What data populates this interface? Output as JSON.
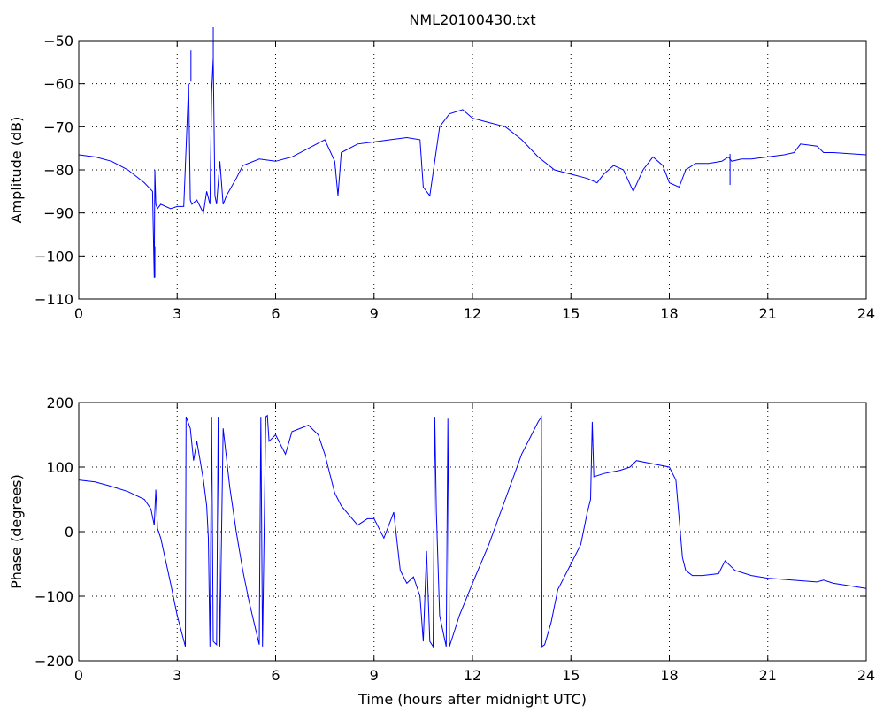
{
  "title": "NML20100430.txt",
  "chart_data": [
    {
      "type": "line",
      "name": "amplitude",
      "xlabel": "",
      "ylabel": "Amplitude (dB)",
      "xlim": [
        0,
        24
      ],
      "ylim": [
        -110,
        -50
      ],
      "xticks": [
        0,
        3,
        6,
        9,
        12,
        15,
        18,
        21,
        24
      ],
      "yticks": [
        -110,
        -100,
        -90,
        -80,
        -70,
        -60,
        -50
      ],
      "grid": true,
      "color": "#0000ff",
      "x": [
        0,
        0.5,
        1.0,
        1.5,
        2.0,
        2.25,
        2.3,
        2.32,
        2.35,
        2.4,
        2.5,
        2.8,
        3.0,
        3.2,
        3.35,
        3.4,
        3.45,
        3.6,
        3.8,
        3.9,
        4.0,
        4.05,
        4.1,
        4.15,
        4.2,
        4.3,
        4.4,
        4.5,
        4.8,
        5.0,
        5.5,
        6.0,
        6.5,
        7.0,
        7.5,
        7.8,
        7.9,
        8.0,
        8.5,
        9.0,
        9.5,
        10.0,
        10.4,
        10.5,
        10.7,
        11.0,
        11.3,
        11.7,
        12.0,
        12.5,
        13.0,
        13.5,
        14.0,
        14.5,
        15.0,
        15.5,
        15.8,
        16.0,
        16.3,
        16.6,
        16.9,
        17.2,
        17.5,
        17.8,
        18.0,
        18.3,
        18.5,
        18.8,
        19.2,
        19.6,
        19.8,
        19.9,
        20.2,
        20.5,
        21.0,
        21.5,
        21.8,
        22.0,
        22.5,
        22.7,
        23.0,
        24.0
      ],
      "y": [
        -76.5,
        -77,
        -78,
        -80,
        -83,
        -85,
        -105,
        -80,
        -88,
        -89,
        -88,
        -89,
        -88.5,
        -88.5,
        -60,
        -87,
        -88,
        -87,
        -90,
        -85,
        -88,
        -62,
        -54,
        -86,
        -88,
        -78,
        -88,
        -86,
        -82,
        -79,
        -77.5,
        -78,
        -77,
        -75,
        -73,
        -78,
        -86,
        -76,
        -74,
        -73.5,
        -73,
        -72.5,
        -73,
        -84,
        -86,
        -70,
        -67,
        -66,
        -68,
        -69,
        -70,
        -73,
        -77,
        -80,
        -81,
        -82,
        -83,
        -81,
        -79,
        -80,
        -85,
        -80,
        -77,
        -79,
        -83,
        -84,
        -80,
        -78.5,
        -78.5,
        -78,
        -77,
        -78,
        -77.5,
        -77.5,
        -77,
        -76.5,
        -76,
        -74,
        -74.5,
        -76,
        -76,
        -76.5
      ],
      "annotations": [
        {
          "x": 2.32,
          "y": -105
        },
        {
          "x": 3.42,
          "y": -59.5
        },
        {
          "x": 4.1,
          "y": -54
        },
        {
          "x": 19.85,
          "y": -83.5
        }
      ]
    },
    {
      "type": "line",
      "name": "phase",
      "xlabel": "Time (hours after midnight UTC)",
      "ylabel": "Phase (degrees)",
      "xlim": [
        0,
        24
      ],
      "ylim": [
        -200,
        200
      ],
      "xticks": [
        0,
        3,
        6,
        9,
        12,
        15,
        18,
        21,
        24
      ],
      "yticks": [
        -200,
        -100,
        0,
        100,
        200
      ],
      "grid": true,
      "color": "#0000ff",
      "x": [
        0,
        0.5,
        1.0,
        1.5,
        2.0,
        2.2,
        2.3,
        2.35,
        2.4,
        2.5,
        2.8,
        3.0,
        3.25,
        3.27,
        3.4,
        3.5,
        3.6,
        3.8,
        3.9,
        3.95,
        4.0,
        4.05,
        4.1,
        4.2,
        4.25,
        4.3,
        4.4,
        4.6,
        4.8,
        5.0,
        5.2,
        5.5,
        5.55,
        5.6,
        5.7,
        5.75,
        5.8,
        6.0,
        6.3,
        6.5,
        7.0,
        7.3,
        7.5,
        7.8,
        8.0,
        8.5,
        8.8,
        9.0,
        9.3,
        9.6,
        9.8,
        10.0,
        10.2,
        10.4,
        10.5,
        10.6,
        10.7,
        10.8,
        10.85,
        10.9,
        11.0,
        11.2,
        11.25,
        11.3,
        11.6,
        12.0,
        12.5,
        13.0,
        13.5,
        14.0,
        14.1,
        14.12,
        14.2,
        14.4,
        14.6,
        15.0,
        15.3,
        15.5,
        15.6,
        15.65,
        15.7,
        16.0,
        16.5,
        16.8,
        17.0,
        17.5,
        18.0,
        18.2,
        18.4,
        18.5,
        18.7,
        19.0,
        19.5,
        19.7,
        20.0,
        20.5,
        21.0,
        21.5,
        22.0,
        22.5,
        22.7,
        23.0,
        23.5,
        24.0
      ],
      "y": [
        80,
        77,
        70,
        62,
        50,
        35,
        10,
        65,
        5,
        -10,
        -80,
        -130,
        -178,
        178,
        160,
        110,
        140,
        80,
        40,
        -10,
        -178,
        178,
        -170,
        -175,
        178,
        -178,
        160,
        70,
        0,
        -60,
        -110,
        -175,
        178,
        -178,
        178,
        180,
        140,
        150,
        120,
        155,
        165,
        150,
        120,
        60,
        40,
        10,
        20,
        20,
        -10,
        30,
        -60,
        -80,
        -70,
        -100,
        -170,
        -30,
        -170,
        -178,
        178,
        30,
        -130,
        -178,
        175,
        -178,
        -130,
        -80,
        -20,
        50,
        120,
        170,
        178,
        -178,
        -175,
        -140,
        -90,
        -50,
        -20,
        30,
        50,
        170,
        85,
        90,
        95,
        100,
        110,
        105,
        100,
        80,
        -40,
        -60,
        -68,
        -68,
        -65,
        -45,
        -60,
        -68,
        -72,
        -74,
        -76,
        -78,
        -75,
        -80,
        -84,
        -88
      ],
      "annotations": []
    }
  ]
}
